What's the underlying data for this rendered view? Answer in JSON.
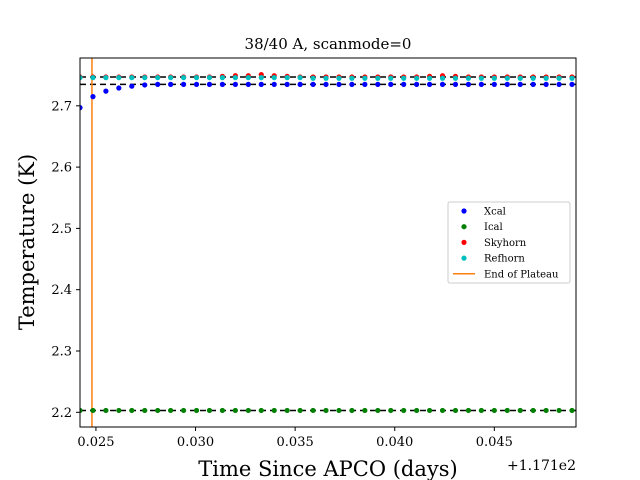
{
  "chart_data": {
    "type": "scatter",
    "title": "38/40 A, scanmode=0",
    "xlabel": "Time Since APCO (days)",
    "ylabel": "Temperature (K)",
    "x_offset_label": "+1.171e2",
    "xlim": [
      0.0242,
      0.0491
    ],
    "ylim": [
      2.176,
      2.778
    ],
    "x_ticks": [
      0.025,
      0.03,
      0.035,
      0.04,
      0.045
    ],
    "x_tick_labels": [
      "0.025",
      "0.030",
      "0.035",
      "0.040",
      "0.045"
    ],
    "y_ticks": [
      2.2,
      2.3,
      2.4,
      2.5,
      2.6,
      2.7
    ],
    "y_tick_labels": [
      "2.2",
      "2.3",
      "2.4",
      "2.5",
      "2.6",
      "2.7"
    ],
    "legend_position": "center-right",
    "x": [
      0.0242,
      0.02485,
      0.0255,
      0.02615,
      0.0268,
      0.02745,
      0.0281,
      0.02875,
      0.0294,
      0.03005,
      0.0307,
      0.03135,
      0.032,
      0.03265,
      0.0333,
      0.03395,
      0.0346,
      0.03525,
      0.0359,
      0.03655,
      0.0372,
      0.03785,
      0.0385,
      0.03915,
      0.0398,
      0.04045,
      0.0411,
      0.04175,
      0.0424,
      0.04305,
      0.0437,
      0.04435,
      0.045,
      0.04565,
      0.0463,
      0.04695,
      0.0476,
      0.04825,
      0.0489
    ],
    "series": [
      {
        "name": "Xcal",
        "color": "#0000ff",
        "values": [
          2.697,
          2.715,
          2.724,
          2.729,
          2.732,
          2.734,
          2.735,
          2.735,
          2.735,
          2.735,
          2.735,
          2.735,
          2.735,
          2.735,
          2.735,
          2.735,
          2.735,
          2.735,
          2.735,
          2.735,
          2.735,
          2.735,
          2.735,
          2.735,
          2.735,
          2.735,
          2.735,
          2.735,
          2.735,
          2.735,
          2.735,
          2.735,
          2.735,
          2.735,
          2.735,
          2.735,
          2.735,
          2.735,
          2.735
        ]
      },
      {
        "name": "Ical",
        "color": "#008000",
        "values": [
          2.203,
          2.203,
          2.203,
          2.203,
          2.203,
          2.203,
          2.203,
          2.203,
          2.203,
          2.203,
          2.203,
          2.203,
          2.203,
          2.203,
          2.203,
          2.203,
          2.203,
          2.203,
          2.203,
          2.203,
          2.203,
          2.203,
          2.203,
          2.203,
          2.203,
          2.203,
          2.203,
          2.203,
          2.203,
          2.203,
          2.203,
          2.203,
          2.203,
          2.203,
          2.203,
          2.203,
          2.203,
          2.203,
          2.203
        ]
      },
      {
        "name": "Skyhorn",
        "color": "#ff0000",
        "values": [
          2.747,
          2.747,
          2.747,
          2.747,
          2.747,
          2.747,
          2.747,
          2.747,
          2.747,
          2.747,
          2.747,
          2.748,
          2.749,
          2.749,
          2.751,
          2.749,
          2.748,
          2.747,
          2.747,
          2.747,
          2.747,
          2.747,
          2.747,
          2.747,
          2.747,
          2.747,
          2.747,
          2.748,
          2.749,
          2.748,
          2.747,
          2.747,
          2.747,
          2.747,
          2.747,
          2.747,
          2.747,
          2.747,
          2.747
        ]
      },
      {
        "name": "Refhorn",
        "color": "#00bfbf",
        "values": [
          2.746,
          2.746,
          2.746,
          2.746,
          2.746,
          2.746,
          2.746,
          2.746,
          2.746,
          2.746,
          2.746,
          2.746,
          2.746,
          2.746,
          2.746,
          2.746,
          2.746,
          2.746,
          2.745,
          2.745,
          2.745,
          2.745,
          2.745,
          2.745,
          2.745,
          2.745,
          2.745,
          2.745,
          2.745,
          2.745,
          2.745,
          2.745,
          2.745,
          2.745,
          2.745,
          2.745,
          2.745,
          2.745,
          2.745
        ]
      }
    ],
    "reference_lines": [
      {
        "y": 2.747,
        "style": "dashed",
        "color": "#000000"
      },
      {
        "y": 2.735,
        "style": "dashed",
        "color": "#000000"
      },
      {
        "y": 2.203,
        "style": "dashed",
        "color": "#000000"
      }
    ],
    "vertical_line": {
      "name": "End of Plateau",
      "x": 0.0248,
      "color": "#ff7f0e"
    }
  }
}
